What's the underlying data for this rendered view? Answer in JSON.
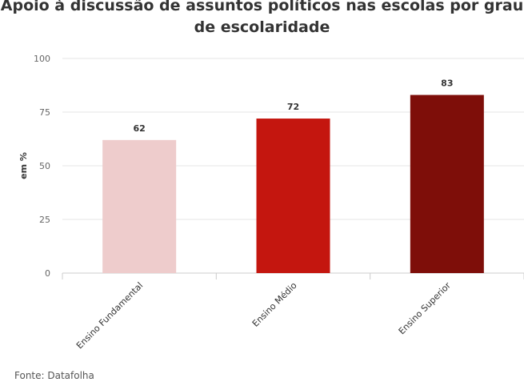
{
  "chart_data": {
    "type": "bar",
    "title": "Apoio à discussão de assuntos políticos nas escolas por grau de escolaridade",
    "ylabel": "em %",
    "xlabel": "",
    "ylim": [
      0,
      100
    ],
    "yticks": [
      0,
      25,
      50,
      75,
      100
    ],
    "categories": [
      "Ensino Fundamental",
      "Ensino Médio",
      "Ensino Superior"
    ],
    "values": [
      62,
      72,
      83
    ],
    "colors": [
      "#eecccc",
      "#c4160f",
      "#7e0e09"
    ],
    "grid": true,
    "legend": "none"
  },
  "source": "Fonte: Datafolha"
}
